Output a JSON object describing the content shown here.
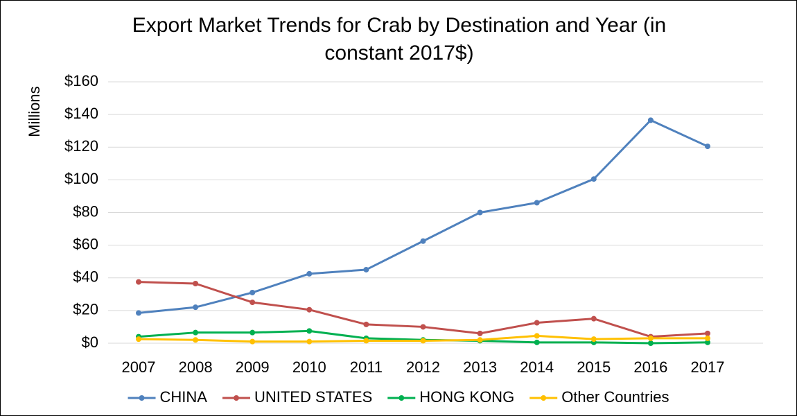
{
  "chart_data": {
    "type": "line",
    "title": "Export Market Trends for Crab by Destination and Year (in constant 2017$)",
    "y_label": "Millions",
    "categories": [
      "2007",
      "2008",
      "2009",
      "2010",
      "2011",
      "2012",
      "2013",
      "2014",
      "2015",
      "2016",
      "2017"
    ],
    "series": [
      {
        "name": "CHINA",
        "color": "#4f81bd",
        "values": [
          18.5,
          22,
          31,
          42.5,
          45,
          62.5,
          80,
          86,
          100.5,
          136.5,
          120.5
        ]
      },
      {
        "name": "UNITED STATES",
        "color": "#c0504d",
        "values": [
          37.5,
          36.5,
          25,
          20.5,
          11.5,
          10,
          6,
          12.5,
          15,
          4,
          6
        ]
      },
      {
        "name": "HONG KONG",
        "color": "#00b050",
        "values": [
          4,
          6.5,
          6.5,
          7.5,
          3,
          2,
          1.5,
          0.5,
          0.5,
          0,
          0.5
        ]
      },
      {
        "name": "Other Countries",
        "color": "#ffc000",
        "values": [
          2.5,
          2,
          1,
          1,
          1.5,
          1.5,
          2,
          4.5,
          2.5,
          3,
          3
        ]
      }
    ],
    "ylim": [
      0,
      160
    ],
    "yticks": [
      {
        "value": 0,
        "label": "$0"
      },
      {
        "value": 20,
        "label": "$20"
      },
      {
        "value": 40,
        "label": "$40"
      },
      {
        "value": 60,
        "label": "$60"
      },
      {
        "value": 80,
        "label": "$80"
      },
      {
        "value": 100,
        "label": "$100"
      },
      {
        "value": 120,
        "label": "$120"
      },
      {
        "value": 140,
        "label": "$140"
      },
      {
        "value": 160,
        "label": "$160"
      }
    ],
    "grid": true,
    "legend": "bottom"
  }
}
